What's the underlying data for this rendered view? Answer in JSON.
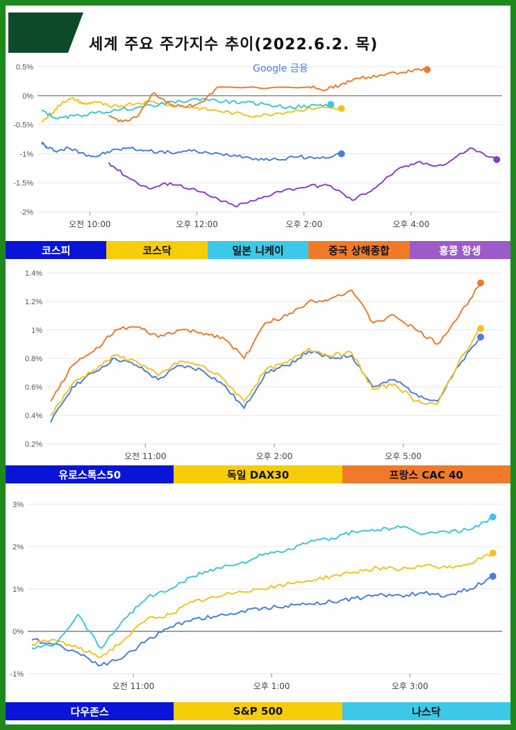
{
  "title": "세계 주요 주가지수 추이(2022.6.2. 목)",
  "source_label": "Google 금융",
  "colors": {
    "frame": "#1e8a1e",
    "title_badge": "#0d4a2a",
    "kospi": "#4a7de0",
    "kosdaq": "#f5c21a",
    "nikkei": "#3cc8d8",
    "shanghai": "#f07a2a",
    "hangseng": "#8a3fc8",
    "stoxx50": "#4a7de0",
    "dax": "#f5c21a",
    "cac": "#f07a2a",
    "dow": "#4a7de0",
    "sp500": "#f5c21a",
    "nasdaq": "#3cc8d8"
  },
  "chart_data": [
    {
      "type": "line",
      "x_ticks": [
        "오전 10:00",
        "오후 12:00",
        "오후 2:00",
        "오후 4:00"
      ],
      "y_ticks": [
        "0.5%",
        "0%",
        "-0.5%",
        "-1%",
        "-1.5%",
        "-2%"
      ],
      "ylim": [
        -2,
        0.5
      ],
      "series": [
        {
          "name": "코스피",
          "key": "kospi",
          "x": [
            0,
            0.1,
            0.3,
            0.5,
            0.8,
            1.0,
            1.3,
            1.6,
            2.0,
            2.4,
            2.8,
            3.2,
            3.6,
            4.0,
            4.4,
            4.8,
            5.2,
            5.6
          ],
          "values": [
            -0.8,
            -0.9,
            -0.95,
            -0.9,
            -1.0,
            -1.05,
            -0.95,
            -0.9,
            -0.95,
            -0.98,
            -0.95,
            -1.0,
            -1.02,
            -1.08,
            -1.1,
            -1.05,
            -1.08,
            -1.0
          ]
        },
        {
          "name": "코스닥",
          "key": "kosdaq",
          "x": [
            0,
            0.2,
            0.4,
            0.6,
            0.8,
            1.0,
            1.3,
            1.6,
            2.0,
            2.4,
            2.8,
            3.2,
            3.6,
            4.0,
            4.4,
            4.8,
            5.2,
            5.6
          ],
          "values": [
            -0.45,
            -0.3,
            -0.1,
            -0.05,
            -0.15,
            -0.1,
            -0.2,
            -0.15,
            -0.1,
            -0.15,
            -0.2,
            -0.25,
            -0.3,
            -0.35,
            -0.3,
            -0.25,
            -0.2,
            -0.22
          ]
        },
        {
          "name": "일본 니케이",
          "key": "nikkei",
          "x": [
            0,
            0.3,
            0.6,
            1.0,
            1.4,
            1.8,
            2.2,
            2.6,
            3.0,
            3.4,
            3.8,
            4.2,
            4.6,
            5.0,
            5.4
          ],
          "values": [
            -0.25,
            -0.4,
            -0.35,
            -0.3,
            -0.25,
            -0.2,
            -0.15,
            -0.1,
            -0.05,
            -0.1,
            -0.12,
            -0.15,
            -0.2,
            -0.18,
            -0.15
          ]
        },
        {
          "name": "중국 상해종합",
          "key": "shanghai",
          "x": [
            1.25,
            1.5,
            1.8,
            2.1,
            2.4,
            2.7,
            3.0,
            3.3,
            5.0,
            5.3,
            5.6,
            5.9,
            6.3,
            6.7,
            7.0,
            7.2
          ],
          "values": [
            -0.35,
            -0.45,
            -0.35,
            0.05,
            -0.15,
            -0.2,
            -0.1,
            0.15,
            0.15,
            0.1,
            0.2,
            0.3,
            0.35,
            0.4,
            0.45,
            0.45
          ]
        },
        {
          "name": "홍콩 항셍",
          "key": "hangseng",
          "x": [
            1.25,
            1.6,
            2.0,
            2.4,
            2.8,
            3.2,
            3.6,
            4.0,
            4.4,
            5.0,
            5.4,
            5.8,
            6.2,
            6.6,
            7.0,
            7.5,
            8.0,
            8.5
          ],
          "values": [
            -1.15,
            -1.4,
            -1.6,
            -1.5,
            -1.6,
            -1.75,
            -1.9,
            -1.8,
            -1.65,
            -1.55,
            -1.55,
            -1.8,
            -1.6,
            -1.3,
            -1.15,
            -1.2,
            -0.9,
            -1.1
          ]
        }
      ],
      "legend": [
        "코스피",
        "코스닥",
        "일본 니케이",
        "중국 상해종합",
        "홍콩 항셍"
      ]
    },
    {
      "type": "line",
      "x_ticks": [
        "오전 11:00",
        "오후 2:00",
        "오후 5:00"
      ],
      "y_ticks": [
        "1.4%",
        "1.2%",
        "1%",
        "0.8%",
        "0.6%",
        "0.4%",
        "0.2%"
      ],
      "ylim": [
        0.2,
        1.4
      ],
      "series": [
        {
          "name": "유로스톡스50",
          "key": "stoxx50",
          "x": [
            0,
            0.5,
            1,
            1.5,
            2,
            2.5,
            3,
            3.5,
            4,
            4.5,
            5,
            5.5,
            6,
            6.5,
            7,
            7.5,
            8,
            8.5,
            9,
            9.5,
            10
          ],
          "values": [
            0.35,
            0.6,
            0.7,
            0.8,
            0.75,
            0.65,
            0.75,
            0.72,
            0.62,
            0.45,
            0.7,
            0.75,
            0.85,
            0.8,
            0.82,
            0.6,
            0.65,
            0.55,
            0.5,
            0.75,
            0.95
          ]
        },
        {
          "name": "독일 DAX30",
          "key": "dax",
          "x": [
            0,
            0.5,
            1,
            1.5,
            2,
            2.5,
            3,
            3.5,
            4,
            4.5,
            5,
            5.5,
            6,
            6.5,
            7,
            7.5,
            8,
            8.5,
            9,
            9.5,
            10
          ],
          "values": [
            0.4,
            0.62,
            0.72,
            0.82,
            0.78,
            0.68,
            0.78,
            0.75,
            0.66,
            0.5,
            0.72,
            0.77,
            0.87,
            0.82,
            0.84,
            0.58,
            0.62,
            0.5,
            0.48,
            0.78,
            1.01
          ]
        },
        {
          "name": "프랑스 CAC 40",
          "key": "cac",
          "x": [
            0,
            0.5,
            1,
            1.5,
            2,
            2.5,
            3,
            3.5,
            4,
            4.5,
            5,
            5.5,
            6,
            6.5,
            7,
            7.5,
            8,
            8.5,
            9,
            9.5,
            10
          ],
          "values": [
            0.5,
            0.75,
            0.85,
            1.0,
            1.02,
            0.95,
            1.0,
            0.98,
            0.95,
            0.8,
            1.05,
            1.1,
            1.2,
            1.22,
            1.28,
            1.05,
            1.1,
            1.0,
            0.9,
            1.1,
            1.33
          ]
        }
      ],
      "legend": [
        "유로스톡스50",
        "독일 DAX30",
        "프랑스 CAC 40"
      ]
    },
    {
      "type": "line",
      "x_ticks": [
        "오전 11:00",
        "오후 1:00",
        "오후 3:00"
      ],
      "y_ticks": [
        "3%",
        "2%",
        "1%",
        "0%",
        "-1%"
      ],
      "ylim": [
        -1,
        3
      ],
      "series": [
        {
          "name": "다우존스",
          "key": "dow",
          "x": [
            0,
            0.5,
            1,
            1.5,
            2,
            2.5,
            3,
            3.5,
            4,
            4.5,
            5,
            5.5,
            6,
            6.5,
            7,
            7.5,
            8,
            8.5,
            9,
            9.5,
            10
          ],
          "values": [
            -0.2,
            -0.3,
            -0.5,
            -0.8,
            -0.6,
            -0.2,
            0.1,
            0.3,
            0.35,
            0.45,
            0.55,
            0.6,
            0.65,
            0.7,
            0.78,
            0.85,
            0.85,
            0.9,
            0.85,
            1.0,
            1.3
          ]
        },
        {
          "name": "S&P 500",
          "key": "sp500",
          "x": [
            0,
            0.5,
            1,
            1.5,
            2,
            2.5,
            3,
            3.5,
            4,
            4.5,
            5,
            5.5,
            6,
            6.5,
            7,
            7.5,
            8,
            8.5,
            9,
            9.5,
            10
          ],
          "values": [
            -0.3,
            -0.2,
            -0.4,
            -0.6,
            -0.2,
            0.3,
            0.4,
            0.7,
            0.8,
            0.95,
            1.0,
            1.1,
            1.2,
            1.3,
            1.4,
            1.5,
            1.45,
            1.55,
            1.5,
            1.6,
            1.85
          ]
        },
        {
          "name": "나스닥",
          "key": "nasdaq",
          "x": [
            0,
            0.5,
            1,
            1.5,
            2,
            2.5,
            3,
            3.5,
            4,
            4.5,
            5,
            5.5,
            6,
            6.5,
            7,
            7.5,
            8,
            8.5,
            9,
            9.5,
            10
          ],
          "values": [
            -0.4,
            -0.3,
            0.4,
            -0.4,
            0.3,
            0.8,
            1.0,
            1.3,
            1.5,
            1.6,
            1.8,
            1.9,
            2.1,
            2.2,
            2.35,
            2.4,
            2.45,
            2.3,
            2.35,
            2.4,
            2.7
          ]
        }
      ],
      "legend": [
        "다우존스",
        "S&P 500",
        "나스닥"
      ]
    }
  ]
}
